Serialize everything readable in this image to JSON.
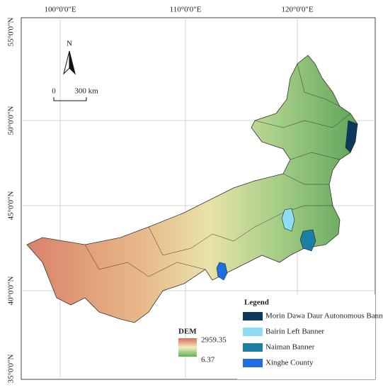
{
  "graticule": {
    "top": [
      "100°0'0\"E",
      "110°0'0\"E",
      "120°0'0\"E"
    ],
    "left": [
      "55°0'0\"N",
      "50°0'0\"N",
      "45°0'0\"N",
      "40°0'0\"N",
      "35°0'0\"N"
    ]
  },
  "north_arrow": {
    "label": "N"
  },
  "scale_bar": {
    "start": "0",
    "end": "300 km"
  },
  "dem_legend": {
    "title": "DEM",
    "high": "2959.35",
    "low": "6.37"
  },
  "legend": {
    "title": "Legend",
    "items": [
      {
        "name": "Morin Dawa Daur Autonomous Banner",
        "color": "#0b3a5c"
      },
      {
        "name": "Bairin Left Banner",
        "color": "#8fdcf7"
      },
      {
        "name": "Naiman Banner",
        "color": "#1b7fa3"
      },
      {
        "name": "Xinghe County",
        "color": "#1f6fe0"
      }
    ]
  }
}
